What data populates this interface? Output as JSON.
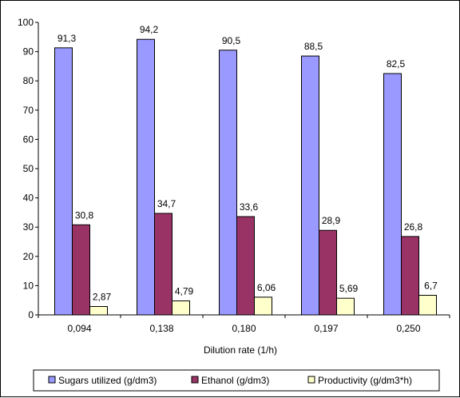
{
  "chart_data": {
    "type": "bar",
    "categories": [
      "0,094",
      "0,138",
      "0,180",
      "0,197",
      "0,250"
    ],
    "series": [
      {
        "name": "Sugars utilized (g/dm3)",
        "values": [
          91.3,
          94.2,
          90.5,
          88.5,
          82.5
        ],
        "labels": [
          "91,3",
          "94,2",
          "90,5",
          "88,5",
          "82,5"
        ],
        "color": "#9999ff"
      },
      {
        "name": "Ethanol (g/dm3)",
        "values": [
          30.8,
          34.7,
          33.6,
          28.9,
          26.8
        ],
        "labels": [
          "30,8",
          "34,7",
          "33,6",
          "28,9",
          "26,8"
        ],
        "color": "#993366"
      },
      {
        "name": "Productivity (g/dm3*h)",
        "values": [
          2.87,
          4.79,
          6.06,
          5.69,
          6.7
        ],
        "labels": [
          "2,87",
          "4,79",
          "6,06",
          "5,69",
          "6,7"
        ],
        "color": "#ffffcc"
      }
    ],
    "xlabel": "Dilution rate (1/h)",
    "ylabel": "",
    "ylim": [
      0,
      100
    ],
    "yticks": [
      "0",
      "10",
      "20",
      "30",
      "40",
      "50",
      "60",
      "70",
      "80",
      "90",
      "100"
    ],
    "grid": false,
    "legend": "bottom"
  }
}
